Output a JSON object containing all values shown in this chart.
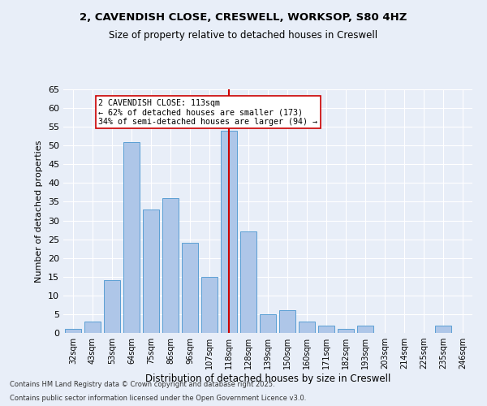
{
  "title_line1": "2, CAVENDISH CLOSE, CRESWELL, WORKSOP, S80 4HZ",
  "title_line2": "Size of property relative to detached houses in Creswell",
  "xlabel": "Distribution of detached houses by size in Creswell",
  "ylabel": "Number of detached properties",
  "categories": [
    "32sqm",
    "43sqm",
    "53sqm",
    "64sqm",
    "75sqm",
    "86sqm",
    "96sqm",
    "107sqm",
    "118sqm",
    "128sqm",
    "139sqm",
    "150sqm",
    "160sqm",
    "171sqm",
    "182sqm",
    "193sqm",
    "203sqm",
    "214sqm",
    "225sqm",
    "235sqm",
    "246sqm"
  ],
  "values": [
    1,
    3,
    14,
    51,
    33,
    36,
    24,
    15,
    54,
    27,
    5,
    6,
    3,
    2,
    1,
    2,
    0,
    0,
    0,
    2,
    0
  ],
  "bar_color": "#aec6e8",
  "bar_edge_color": "#5a9fd4",
  "vline_x": 8,
  "vline_color": "#cc0000",
  "annotation_text": "2 CAVENDISH CLOSE: 113sqm\n← 62% of detached houses are smaller (173)\n34% of semi-detached houses are larger (94) →",
  "annotation_box_color": "#ffffff",
  "annotation_box_edge_color": "#cc0000",
  "bg_color": "#e8eef8",
  "plot_bg_color": "#e8eef8",
  "footer_line1": "Contains HM Land Registry data © Crown copyright and database right 2025.",
  "footer_line2": "Contains public sector information licensed under the Open Government Licence v3.0.",
  "ylim": [
    0,
    65
  ],
  "yticks": [
    0,
    5,
    10,
    15,
    20,
    25,
    30,
    35,
    40,
    45,
    50,
    55,
    60,
    65
  ]
}
